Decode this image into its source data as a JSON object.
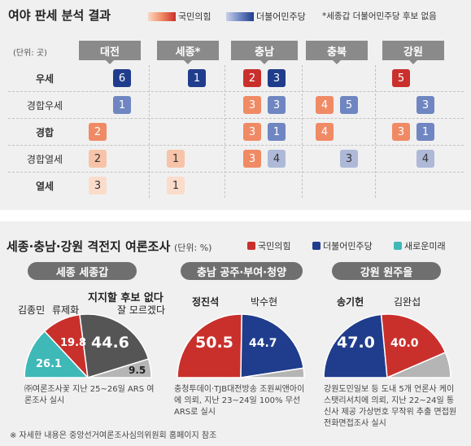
{
  "colors": {
    "ppp_light": "#f7c4a9",
    "ppp_mid": "#f08a65",
    "ppp_dark": "#c9302c",
    "dem_light": "#aeb9d8",
    "dem_mid": "#6f86c2",
    "dem_dark": "#1f3d8c",
    "saenuri": "#3fb8b8"
  },
  "part1": {
    "title": "여야 판세 분석 결과",
    "legend_ppp": "국민의힘",
    "legend_dem": "더불어민주당",
    "legend_note": "*세종갑 더불어민주당 후보 없음",
    "unit": "(단위: 곳)",
    "regions": [
      "대전",
      "세종*",
      "충남",
      "충북",
      "강원"
    ],
    "rows": [
      "우세",
      "경합우세",
      "경합",
      "경합열세",
      "열세"
    ]
  },
  "chart_data": [
    {
      "type": "table",
      "title": "여야 판세 분석 결과",
      "unit": "(단위: 곳)",
      "columns": [
        "대전",
        "세종*",
        "충남",
        "충북",
        "강원"
      ],
      "rows": [
        "우세",
        "경합우세",
        "경합",
        "경합열세",
        "열세"
      ],
      "cells": [
        {
          "row": 0,
          "col": 0,
          "party": "dem",
          "value": "6",
          "tone": "dark"
        },
        {
          "row": 0,
          "col": 1,
          "party": "dem",
          "value": "1",
          "tone": "dark"
        },
        {
          "row": 0,
          "col": 2,
          "party": "ppp",
          "value": "2",
          "tone": "dark",
          "slot": 0
        },
        {
          "row": 0,
          "col": 2,
          "party": "dem",
          "value": "3",
          "tone": "dark",
          "slot": 1
        },
        {
          "row": 0,
          "col": 4,
          "party": "ppp",
          "value": "5",
          "tone": "dark"
        },
        {
          "row": 1,
          "col": 0,
          "party": "dem",
          "value": "1",
          "tone": "mid"
        },
        {
          "row": 1,
          "col": 2,
          "party": "ppp",
          "value": "3",
          "tone": "mid",
          "slot": 0
        },
        {
          "row": 1,
          "col": 2,
          "party": "dem",
          "value": "3",
          "tone": "mid",
          "slot": 1
        },
        {
          "row": 1,
          "col": 3,
          "party": "ppp",
          "value": "4",
          "tone": "mid",
          "slot": 0
        },
        {
          "row": 1,
          "col": 3,
          "party": "dem",
          "value": "5",
          "tone": "mid",
          "slot": 1
        },
        {
          "row": 1,
          "col": 4,
          "party": "dem",
          "value": "3",
          "tone": "mid"
        },
        {
          "row": 2,
          "col": 0,
          "party": "ppp",
          "value": "2",
          "tone": "mid2"
        },
        {
          "row": 2,
          "col": 2,
          "party": "ppp",
          "value": "3",
          "tone": "mid2",
          "slot": 0
        },
        {
          "row": 2,
          "col": 2,
          "party": "dem",
          "value": "1",
          "tone": "mid2",
          "slot": 1
        },
        {
          "row": 2,
          "col": 3,
          "party": "ppp",
          "value": "4",
          "tone": "mid2",
          "slot": 0
        },
        {
          "row": 2,
          "col": 4,
          "party": "ppp",
          "value": "3",
          "tone": "mid2",
          "slot": 0
        },
        {
          "row": 2,
          "col": 4,
          "party": "dem",
          "value": "1",
          "tone": "mid2",
          "slot": 1
        },
        {
          "row": 3,
          "col": 0,
          "party": "ppp",
          "value": "2",
          "tone": "light"
        },
        {
          "row": 3,
          "col": 1,
          "party": "ppp",
          "value": "1",
          "tone": "light"
        },
        {
          "row": 3,
          "col": 2,
          "party": "ppp",
          "value": "3",
          "tone": "mid2",
          "slot": 0
        },
        {
          "row": 3,
          "col": 2,
          "party": "dem",
          "value": "4",
          "tone": "light",
          "slot": 1
        },
        {
          "row": 3,
          "col": 3,
          "party": "dem",
          "value": "3",
          "tone": "light",
          "slot": 1
        },
        {
          "row": 3,
          "col": 4,
          "party": "dem",
          "value": "4",
          "tone": "light",
          "slot": 1
        },
        {
          "row": 4,
          "col": 0,
          "party": "ppp",
          "value": "3",
          "tone": "pale"
        },
        {
          "row": 4,
          "col": 1,
          "party": "ppp",
          "value": "1",
          "tone": "pale"
        }
      ]
    },
    {
      "type": "pie",
      "title": "세종 세종갑",
      "slices": [
        {
          "name": "김종민",
          "value": 26.1,
          "color": "#3fb8b8"
        },
        {
          "name": "류제화",
          "value": 19.8,
          "color": "#c9302c"
        },
        {
          "name": "지지할 후보 없다",
          "value": 44.6,
          "color": "#555555"
        },
        {
          "name": "잘 모르겠다",
          "value": 9.5,
          "color": "#b5b5b5"
        }
      ]
    },
    {
      "type": "pie",
      "title": "충남 공주·부여·청양",
      "slices": [
        {
          "name": "정진석",
          "value": 50.5,
          "color": "#c9302c"
        },
        {
          "name": "박수현",
          "value": 44.7,
          "color": "#1f3d8c"
        },
        {
          "name": "",
          "value": 4.8,
          "color": "#b5b5b5"
        }
      ]
    },
    {
      "type": "pie",
      "title": "강원 원주을",
      "slices": [
        {
          "name": "송기헌",
          "value": 47.0,
          "color": "#1f3d8c"
        },
        {
          "name": "김완섭",
          "value": 40.0,
          "color": "#c9302c"
        },
        {
          "name": "",
          "value": 13.0,
          "color": "#b5b5b5"
        }
      ]
    }
  ],
  "part2": {
    "title": "세종·충남·강원 격전지 여론조사",
    "unit": "(단위: %)",
    "legend": [
      "국민의힘",
      "더불어민주당",
      "새로운미래"
    ],
    "subheads": [
      "세종 세종갑",
      "충남 공주·부여·청양",
      "강원 원주을"
    ],
    "labels": {
      "kim_jm": "김종민",
      "ryu": "류제화",
      "none": "지지할 후보 없다",
      "dunno": "잘 모르겠다",
      "jeong": "정진석",
      "park": "박수현",
      "song": "송기헌",
      "kim_ws": "김완섭"
    },
    "values": {
      "kim_jm": "26.1",
      "ryu": "19.8",
      "none": "44.6",
      "dunno": "9.5",
      "jeong": "50.5",
      "park": "44.7",
      "song": "47.0",
      "kim_ws": "40.0"
    },
    "notes": {
      "sejong": "㈜여론조사꽃 지난 25~26일 ARS 여론조사 실시",
      "chungnam": "충청투데이·TJB대전방송 조원씨앤아이에 의뢰, 지난 23~24일 100% 무선ARS로 실시",
      "gangwon": "강원도민일보 등 도내 5개 언론사 케이스탯리서치에 의뢰, 지난 22~24일 통신사 제공 가상번호 무작위 추출 면접원 전화면접조사 실시"
    },
    "footnote": "※ 자세한 내용은 중앙선거여론조사심의위원회 홈페이지 참조"
  }
}
